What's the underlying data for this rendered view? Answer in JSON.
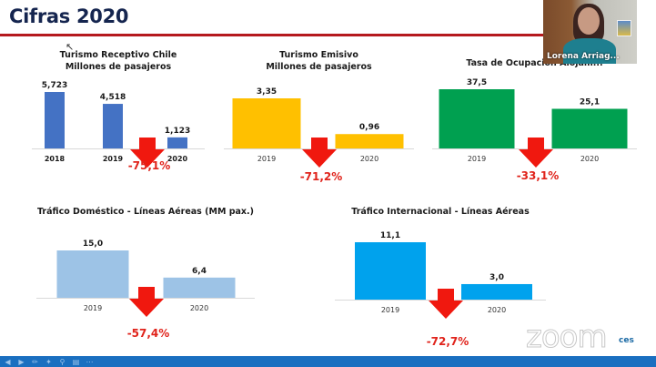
{
  "slide": {
    "title": "Cifras 2020"
  },
  "video": {
    "participant_name": "Lorena Arriag..."
  },
  "branding": {
    "zoom_logo": "zoom",
    "ces_logo": "ces"
  },
  "toolbar": {
    "icons": [
      "prev-icon",
      "next-icon",
      "pen-icon",
      "pointer-icon",
      "zoom-icon",
      "subtitles-icon",
      "more-icon"
    ]
  },
  "colors": {
    "title_rule": "#b5191e",
    "title_text": "#15254f",
    "arrow": "#f0180f",
    "pct_text": "#e0231b",
    "bottom_bar": "#1a6fc0"
  },
  "chart_data": [
    {
      "type": "bar",
      "id": "receptivo",
      "title": "Turismo Receptivo Chile",
      "subtitle": "Millones de pasajeros",
      "categories": [
        "2018",
        "2019",
        "2020"
      ],
      "values": [
        5.723,
        4.518,
        1.123
      ],
      "value_labels": [
        "5,723",
        "4,518",
        "1,123"
      ],
      "color": "#4472c4",
      "change_label": "-75,1%",
      "bold_categories": true
    },
    {
      "type": "bar",
      "id": "emisivo",
      "title": "Turismo Emisivo",
      "subtitle": "Millones de pasajeros",
      "categories": [
        "2019",
        "2020"
      ],
      "values": [
        3.35,
        0.96
      ],
      "value_labels": [
        "3,35",
        "0,96"
      ],
      "color": "#ffc000",
      "change_label": "-71,2%",
      "bold_categories": false
    },
    {
      "type": "bar",
      "id": "ocupacion",
      "title": "Tasa de Ocupación Alojam...",
      "subtitle": "",
      "categories": [
        "2019",
        "2020"
      ],
      "values": [
        37.5,
        25.1
      ],
      "value_labels": [
        "37,5",
        "25,1"
      ],
      "color": "#00a050",
      "change_label": "-33,1%",
      "bold_categories": false
    },
    {
      "type": "bar",
      "id": "domestico",
      "title": "Tráfico Doméstico - Líneas Aéreas (MM pax.)",
      "subtitle": "",
      "categories": [
        "2019",
        "2020"
      ],
      "values": [
        15.0,
        6.4
      ],
      "value_labels": [
        "15,0",
        "6,4"
      ],
      "color": "#9dc3e6",
      "change_label": "-57,4%",
      "bold_categories": false
    },
    {
      "type": "bar",
      "id": "internacional",
      "title": "Tráfico Internacional - Líneas Aéreas",
      "subtitle": "",
      "categories": [
        "2019",
        "2020"
      ],
      "values": [
        11.1,
        3.0
      ],
      "value_labels": [
        "11,1",
        "3,0"
      ],
      "color": "#00a2ed",
      "change_label": "-72,7%",
      "bold_categories": false
    }
  ]
}
